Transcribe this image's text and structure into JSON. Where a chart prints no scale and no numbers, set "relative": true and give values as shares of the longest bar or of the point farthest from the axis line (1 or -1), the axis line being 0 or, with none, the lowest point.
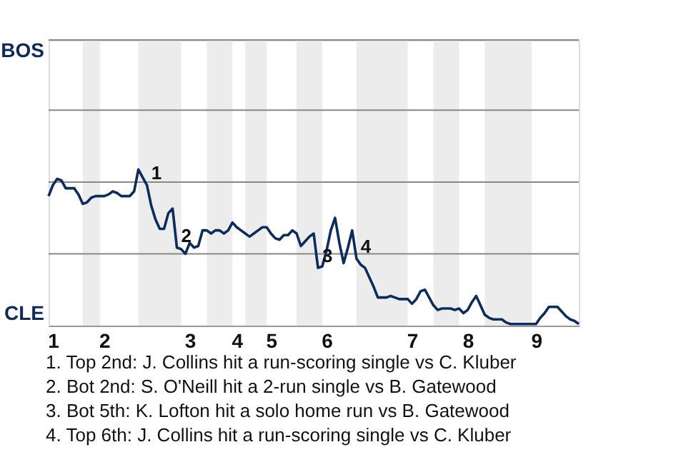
{
  "chart_data": {
    "type": "line",
    "relative": true,
    "color": "#0c2c5c",
    "line_style": "solid",
    "marker": "none",
    "categories": [
      null,
      "1",
      null,
      null,
      null,
      null,
      null,
      null,
      null,
      null,
      null,
      null,
      null,
      "2",
      null,
      null,
      null,
      null,
      null,
      null,
      null,
      null,
      null,
      null,
      null,
      null,
      null,
      null,
      null,
      null,
      null,
      null,
      null,
      "3",
      null,
      null,
      null,
      null,
      null,
      null,
      null,
      null,
      null,
      null,
      "4",
      null,
      null,
      null,
      null,
      null,
      null,
      null,
      "5",
      null,
      null,
      null,
      null,
      null,
      null,
      null,
      null,
      null,
      null,
      null,
      null,
      "6",
      null,
      null,
      null,
      null,
      null,
      null,
      null,
      null,
      null,
      null,
      null,
      null,
      null,
      null,
      null,
      null,
      null,
      null,
      null,
      "7",
      null,
      null,
      null,
      null,
      null,
      null,
      null,
      null,
      null,
      null,
      null,
      null,
      "8",
      null,
      null,
      null,
      null,
      null,
      null,
      null,
      null,
      null,
      null,
      null,
      null,
      null,
      null,
      null,
      "9",
      null,
      null,
      null,
      null,
      null,
      null,
      null,
      null,
      null,
      null
    ],
    "values": [
      0.83,
      0.9,
      0.94,
      0.93,
      0.88,
      0.88,
      0.88,
      0.84,
      0.78,
      0.79,
      0.82,
      0.83,
      0.83,
      0.83,
      0.84,
      0.86,
      0.85,
      0.83,
      0.83,
      0.83,
      0.86,
      1,
      0.95,
      0.9,
      0.77,
      0.68,
      0.62,
      0.62,
      0.72,
      0.75,
      0.5,
      0.49,
      0.46,
      0.53,
      0.5,
      0.51,
      0.61,
      0.61,
      0.59,
      0.61,
      0.61,
      0.59,
      0.61,
      0.66,
      0.63,
      0.61,
      0.59,
      0.57,
      0.59,
      0.61,
      0.63,
      0.63,
      0.59,
      0.56,
      0.55,
      0.58,
      0.58,
      0.61,
      0.59,
      0.51,
      0.54,
      0.57,
      0.59,
      0.37,
      0.38,
      0.48,
      0.61,
      0.69,
      0.53,
      0.4,
      0.5,
      0.61,
      0.43,
      0.39,
      0.37,
      0.31,
      0.25,
      0.18,
      0.18,
      0.18,
      0.19,
      0.18,
      0.17,
      0.17,
      0.17,
      0.14,
      0.17,
      0.22,
      0.23,
      0.18,
      0.13,
      0.1,
      0.11,
      0.11,
      0.11,
      0.1,
      0.11,
      0.08,
      0.1,
      0.15,
      0.19,
      0.13,
      0.07,
      0.05,
      0.04,
      0.04,
      0.04,
      0.02,
      0.01,
      0.01,
      0.01,
      0.01,
      0.01,
      0.01,
      0.01,
      0.05,
      0.08,
      0.12,
      0.12,
      0.12,
      0.09,
      0.06,
      0.04,
      0.03,
      0.01
    ],
    "ref_lines": [
      {
        "axis": "y",
        "value": 0.46,
        "label": null,
        "color": "#888888"
      },
      {
        "axis": "y",
        "value": 0.92,
        "label": null,
        "color": "#888888"
      },
      {
        "axis": "y",
        "value": 1.38,
        "label": null,
        "color": "#888888"
      },
      {
        "axis": "y",
        "value": 1.83,
        "label": "BOS",
        "color": "#888888"
      }
    ],
    "annotations": [
      "1",
      "2",
      "3",
      "4",
      "CLE",
      "1. Top 2nd: J. Collins hit a run-scoring single vs C. Kluber",
      "2. Bot 2nd: S. O'Neill hit a 2-run single vs B. Gatewood",
      "3. Bot 5th: K. Lofton hit a solo home run vs B. Gatewood",
      "4. Top 6th: J. Collins hit a run-scoring single vs C. Kluber"
    ]
  }
}
